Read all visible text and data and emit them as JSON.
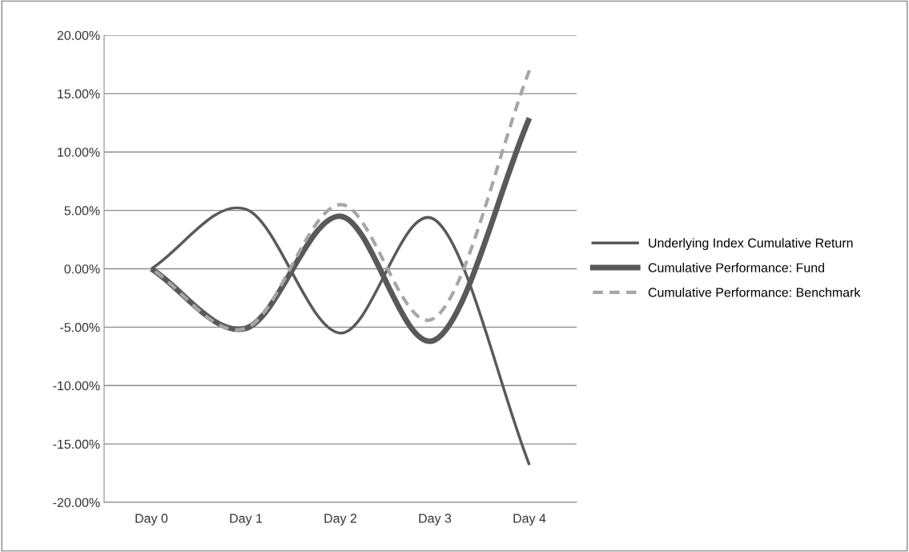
{
  "chart_data": {
    "type": "line",
    "categories": [
      "Day 0",
      "Day 1",
      "Day 2",
      "Day 3",
      "Day 4"
    ],
    "series": [
      {
        "name": "Underlying Index Cumulative Return",
        "color": "#595959",
        "line_style": "solid",
        "values": [
          0,
          5.1,
          -5.5,
          4.2,
          -16.8
        ]
      },
      {
        "name": "Cumulative Performance: Fund",
        "color": "#595959",
        "line_style": "solid",
        "values": [
          0,
          -5.1,
          4.5,
          -6.1,
          12.9
        ]
      },
      {
        "name": "Cumulative Performance: Benchmark",
        "color": "#a6a6a6",
        "line_style": "dashed",
        "values": [
          0,
          -5.1,
          5.5,
          -4.2,
          17.0
        ]
      }
    ],
    "ylim": [
      -20,
      20
    ],
    "yticks": [
      {
        "value": -20,
        "label": "-20.00%"
      },
      {
        "value": -15,
        "label": "-15.00%"
      },
      {
        "value": -10,
        "label": "-10.00%"
      },
      {
        "value": -5,
        "label": "-5.00%"
      },
      {
        "value": 0,
        "label": "0.00%"
      },
      {
        "value": 5,
        "label": "5.00%"
      },
      {
        "value": 10,
        "label": "10.00%"
      },
      {
        "value": 15,
        "label": "15.00%"
      },
      {
        "value": 20,
        "label": "20.00%"
      }
    ],
    "grid": "y",
    "legend": "right",
    "marker": "none"
  }
}
